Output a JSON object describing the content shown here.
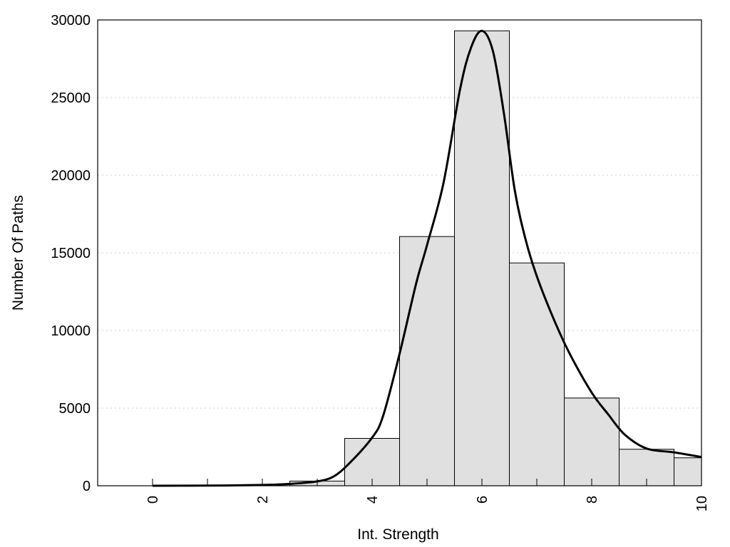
{
  "chart_data": {
    "type": "bar",
    "xlabel": "Int. Strength",
    "ylabel": "Number Of Paths",
    "xlim": [
      -1,
      10
    ],
    "ylim": [
      0,
      30000
    ],
    "grid": "horizontal dotted",
    "x_ticks": [
      "0",
      "2",
      "4",
      "6",
      "8",
      "10"
    ],
    "y_ticks": [
      "0",
      "5000",
      "10000",
      "15000",
      "20000",
      "25000",
      "30000"
    ],
    "bar_width": 1,
    "bars": [
      {
        "x": 0,
        "value": 0
      },
      {
        "x": 1,
        "value": 0
      },
      {
        "x": 2,
        "value": 0
      },
      {
        "x": 3,
        "value": 300
      },
      {
        "x": 4,
        "value": 3050
      },
      {
        "x": 5,
        "value": 16050
      },
      {
        "x": 6,
        "value": 29300
      },
      {
        "x": 7,
        "value": 14350
      },
      {
        "x": 8,
        "value": 5650
      },
      {
        "x": 9,
        "value": 2350
      },
      {
        "x": 10,
        "value": 1800
      }
    ],
    "curve": {
      "x": [
        0,
        1,
        2,
        2.5,
        3,
        3.3,
        3.6,
        4,
        4.2,
        4.5,
        4.8,
        5,
        5.3,
        5.6,
        5.8,
        6,
        6.2,
        6.4,
        6.6,
        6.8,
        7,
        7.3,
        7.6,
        8,
        8.3,
        8.6,
        9,
        9.5,
        10
      ],
      "y": [
        0,
        10,
        50,
        120,
        280,
        600,
        1500,
        3100,
        4500,
        8500,
        13000,
        15500,
        19500,
        25500,
        28200,
        29300,
        28000,
        24000,
        19000,
        15800,
        13500,
        10800,
        8500,
        6000,
        4600,
        3300,
        2400,
        2150,
        1850
      ]
    },
    "colors": {
      "bar_fill": "#e0e0e0",
      "bar_stroke": "#000000",
      "curve": "#000000",
      "grid": "#cfcfcf"
    }
  }
}
